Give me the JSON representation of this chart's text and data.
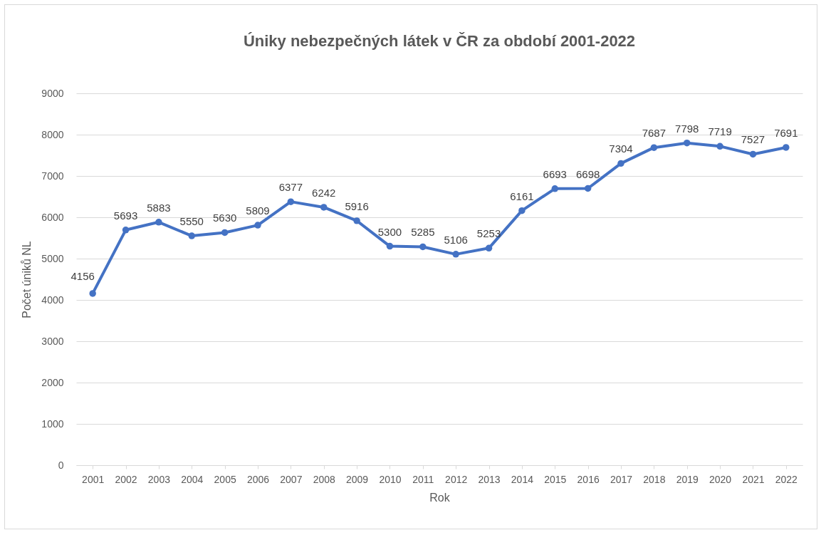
{
  "chart_data": {
    "type": "line",
    "title": "Úniky nebezpečných látek v ČR za období 2001-2022",
    "xlabel": "Rok",
    "ylabel": "Počet úniků NL",
    "categories": [
      "2001",
      "2002",
      "2003",
      "2004",
      "2005",
      "2006",
      "2007",
      "2008",
      "2009",
      "2010",
      "2011",
      "2012",
      "2013",
      "2014",
      "2015",
      "2016",
      "2017",
      "2018",
      "2019",
      "2020",
      "2021",
      "2022"
    ],
    "series": [
      {
        "color": "#4472c4",
        "values": [
          4156,
          5693,
          5883,
          5550,
          5630,
          5809,
          6377,
          6242,
          5916,
          5300,
          5285,
          5106,
          5253,
          6161,
          6693,
          6698,
          7304,
          7687,
          7798,
          7719,
          7527,
          7691
        ]
      }
    ],
    "ylim": [
      0,
      9000
    ],
    "yticks": [
      0,
      1000,
      2000,
      3000,
      4000,
      5000,
      6000,
      7000,
      8000,
      9000
    ],
    "grid": "y",
    "marker": "circle",
    "line_style": "solid",
    "data_labels": true,
    "legend": false
  }
}
